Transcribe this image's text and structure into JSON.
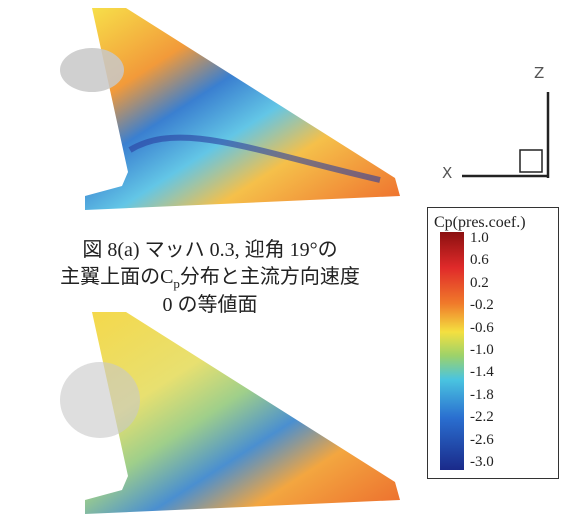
{
  "axes": {
    "z": "Z",
    "x": "X"
  },
  "caption": {
    "line1": "図 8(a) マッハ 0.3, 迎角 19°の",
    "line2_before": "主翼上面のC",
    "line2_sub": "p",
    "line2_after": "分布と主流方向速度",
    "line3": "0 の等値面"
  },
  "legend": {
    "title": "Cp(pres.coef.)",
    "labels": [
      "1.0",
      "0.6",
      "0.2",
      "-0.2",
      "-0.6",
      "-1.0",
      "-1.4",
      "-1.8",
      "-2.2",
      "-2.6",
      "-3.0"
    ]
  }
}
